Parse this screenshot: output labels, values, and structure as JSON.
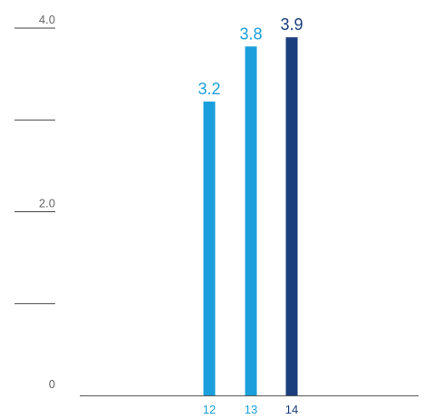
{
  "colors": {
    "light_bar": "#1a9fdc",
    "dark_bar": "#1b3e7d",
    "tick_line": "#444444",
    "tick_text": "#666666",
    "baseline": "#555555"
  },
  "chart_data": {
    "type": "bar",
    "title": "",
    "xlabel": "",
    "ylabel": "",
    "ylim": [
      0,
      4.0
    ],
    "y_ticks": [
      {
        "value": 0,
        "label": "0"
      },
      {
        "value": 1.0,
        "label": ""
      },
      {
        "value": 2.0,
        "label": "2.0"
      },
      {
        "value": 3.0,
        "label": ""
      },
      {
        "value": 4.0,
        "label": "4.0"
      }
    ],
    "categories": [
      "12",
      "13",
      "14"
    ],
    "values": [
      3.2,
      3.8,
      3.9
    ],
    "value_labels": [
      "3.2",
      "3.8",
      "3.9"
    ],
    "bar_colors": [
      "light_bar",
      "light_bar",
      "dark_bar"
    ],
    "grid": false,
    "legend": "none"
  }
}
